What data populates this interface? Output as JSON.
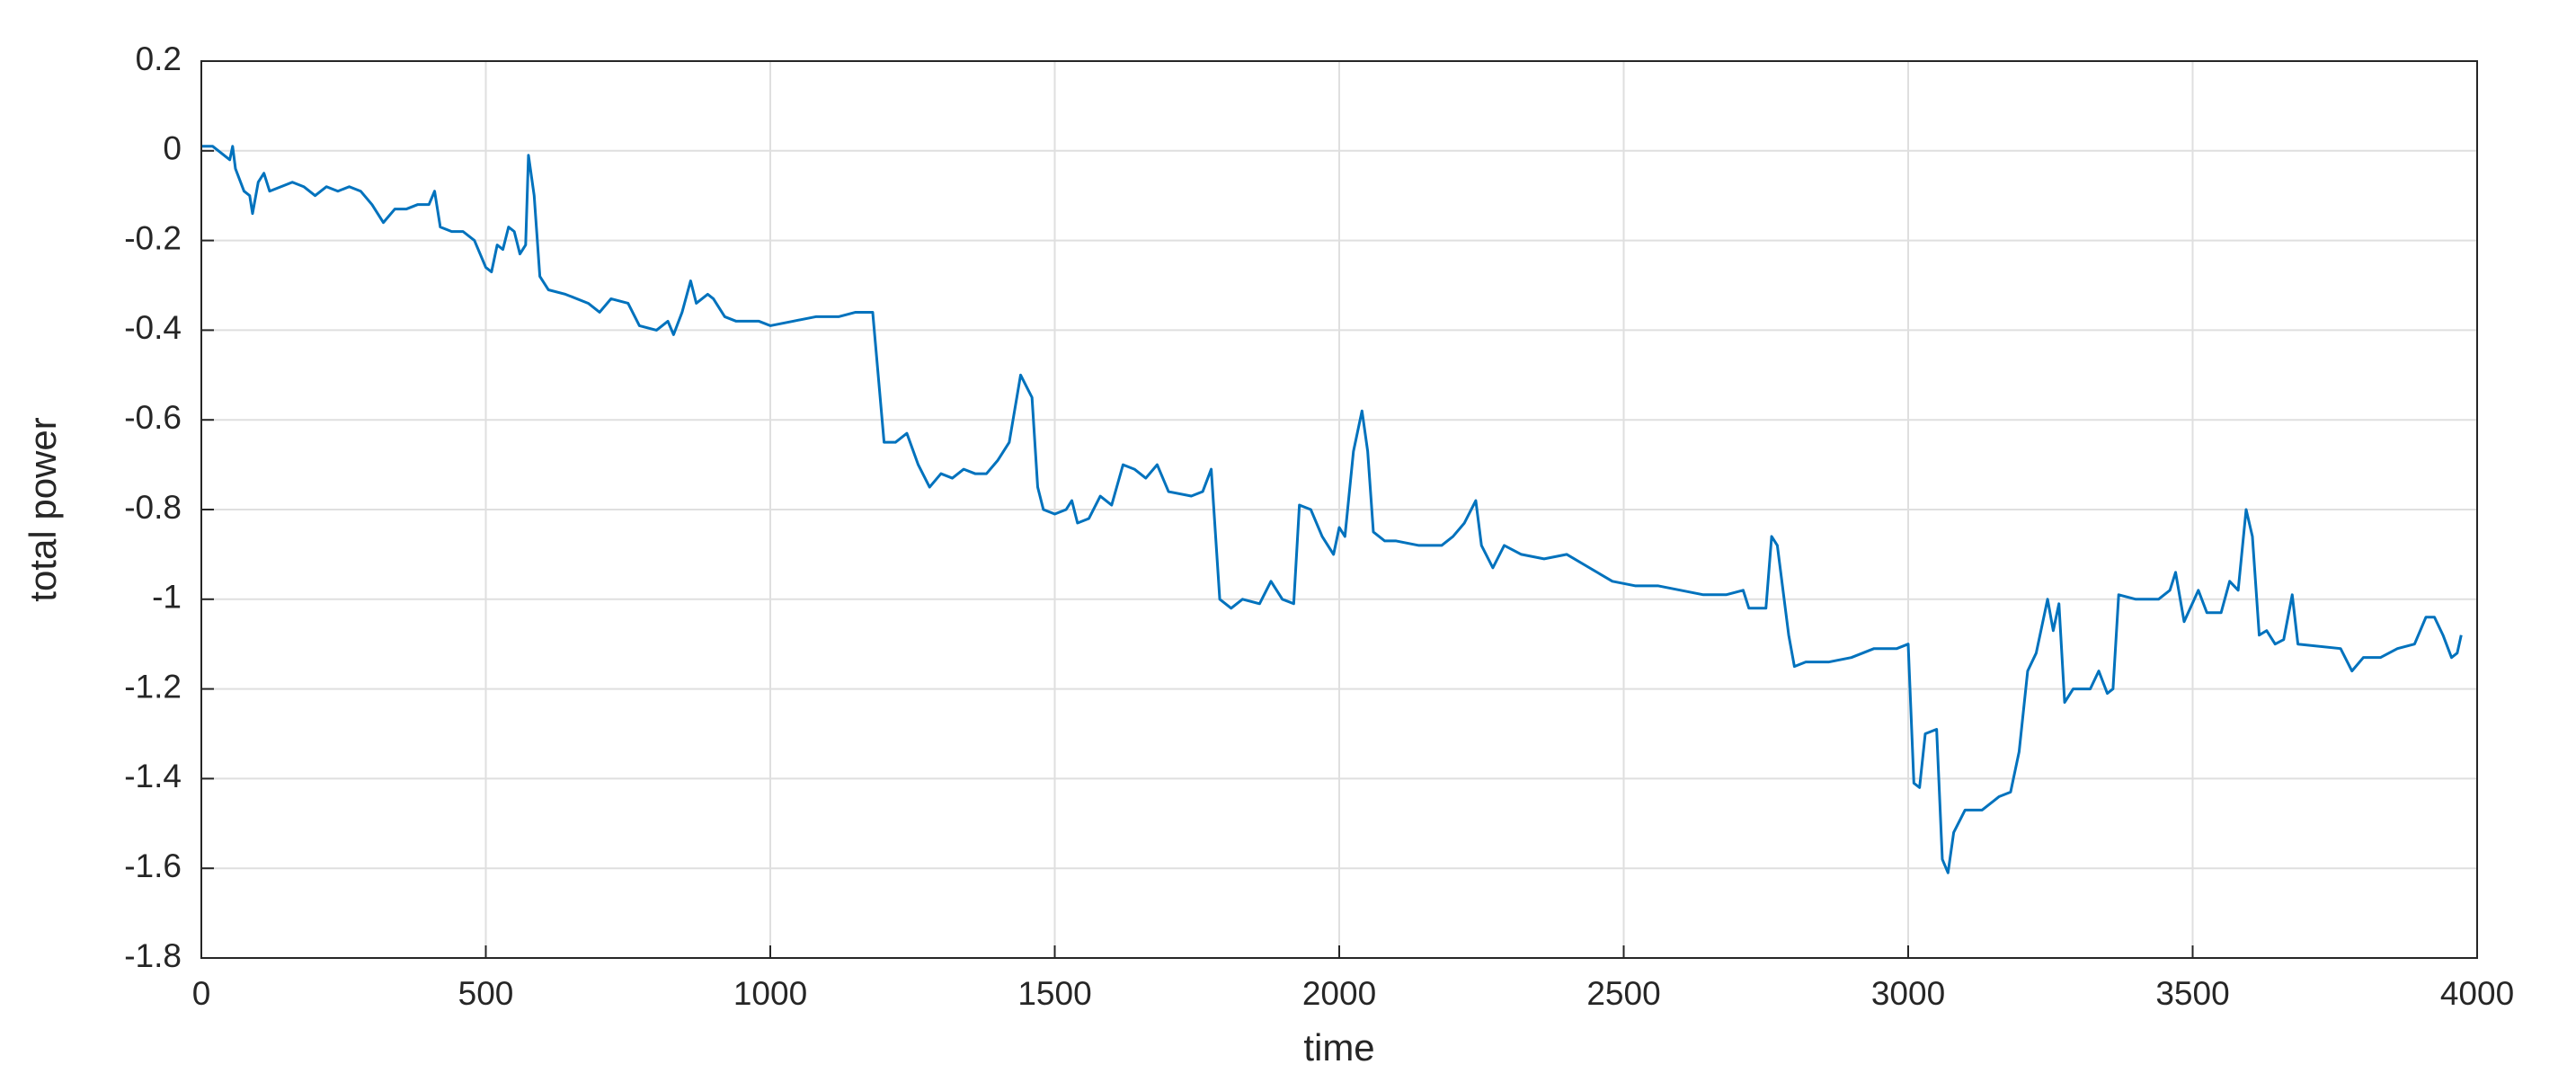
{
  "chart_data": {
    "type": "line",
    "x_label": "time",
    "y_label": "total power",
    "color": "#0072bd",
    "grid": true,
    "xlim": [
      0,
      4000
    ],
    "ylim": [
      -1.8,
      0.2
    ],
    "xticks": [
      0,
      500,
      1000,
      1500,
      2000,
      2500,
      3000,
      3500,
      4000
    ],
    "yticks": [
      -1.8,
      -1.6,
      -1.4,
      -1.2,
      -1,
      -0.8,
      -0.6,
      -0.4,
      -0.2,
      0,
      0.2
    ],
    "x": [
      0,
      20,
      40,
      50,
      55,
      60,
      75,
      85,
      90,
      100,
      110,
      120,
      140,
      160,
      180,
      200,
      220,
      240,
      260,
      280,
      300,
      320,
      340,
      360,
      380,
      400,
      410,
      420,
      440,
      460,
      480,
      500,
      510,
      520,
      530,
      540,
      550,
      560,
      570,
      575,
      585,
      595,
      610,
      640,
      680,
      700,
      720,
      750,
      770,
      800,
      820,
      830,
      845,
      860,
      870,
      890,
      900,
      920,
      940,
      980,
      1000,
      1040,
      1080,
      1120,
      1150,
      1170,
      1180,
      1200,
      1220,
      1240,
      1260,
      1280,
      1300,
      1320,
      1340,
      1360,
      1380,
      1400,
      1420,
      1440,
      1460,
      1470,
      1480,
      1500,
      1520,
      1530,
      1540,
      1560,
      1580,
      1600,
      1620,
      1640,
      1660,
      1680,
      1700,
      1740,
      1760,
      1775,
      1790,
      1810,
      1830,
      1860,
      1880,
      1900,
      1920,
      1930,
      1950,
      1970,
      1990,
      2000,
      2010,
      2025,
      2040,
      2050,
      2060,
      2080,
      2100,
      2140,
      2180,
      2200,
      2220,
      2240,
      2250,
      2270,
      2290,
      2320,
      2360,
      2400,
      2440,
      2480,
      2520,
      2560,
      2600,
      2640,
      2680,
      2710,
      2720,
      2750,
      2760,
      2770,
      2790,
      2800,
      2820,
      2860,
      2900,
      2940,
      2980,
      3000,
      3010,
      3020,
      3030,
      3050,
      3060,
      3070,
      3080,
      3100,
      3130,
      3160,
      3180,
      3195,
      3210,
      3225,
      3245,
      3255,
      3265,
      3275,
      3290,
      3320,
      3335,
      3350,
      3360,
      3370,
      3400,
      3440,
      3460,
      3470,
      3485,
      3510,
      3525,
      3550,
      3565,
      3580,
      3594,
      3605,
      3617,
      3630,
      3645,
      3660,
      3675,
      3685,
      3760,
      3780,
      3800,
      3830,
      3860,
      3890,
      3910,
      3925,
      3940,
      3955,
      3965,
      3972
    ],
    "values": [
      0.01,
      0.01,
      -0.01,
      -0.02,
      0.01,
      -0.04,
      -0.09,
      -0.1,
      -0.14,
      -0.07,
      -0.05,
      -0.09,
      -0.08,
      -0.07,
      -0.08,
      -0.1,
      -0.08,
      -0.09,
      -0.08,
      -0.09,
      -0.12,
      -0.16,
      -0.13,
      -0.13,
      -0.12,
      -0.12,
      -0.09,
      -0.17,
      -0.18,
      -0.18,
      -0.2,
      -0.26,
      -0.27,
      -0.21,
      -0.22,
      -0.17,
      -0.18,
      -0.23,
      -0.21,
      -0.01,
      -0.1,
      -0.28,
      -0.31,
      -0.32,
      -0.34,
      -0.36,
      -0.33,
      -0.34,
      -0.39,
      -0.4,
      -0.38,
      -0.41,
      -0.36,
      -0.29,
      -0.34,
      -0.32,
      -0.33,
      -0.37,
      -0.38,
      -0.38,
      -0.39,
      -0.38,
      -0.37,
      -0.37,
      -0.36,
      -0.36,
      -0.36,
      -0.65,
      -0.65,
      -0.63,
      -0.7,
      -0.75,
      -0.72,
      -0.73,
      -0.71,
      -0.72,
      -0.72,
      -0.69,
      -0.65,
      -0.5,
      -0.55,
      -0.75,
      -0.8,
      -0.81,
      -0.8,
      -0.78,
      -0.83,
      -0.82,
      -0.77,
      -0.79,
      -0.7,
      -0.71,
      -0.73,
      -0.7,
      -0.76,
      -0.77,
      -0.76,
      -0.71,
      -1.0,
      -1.02,
      -1.0,
      -1.01,
      -0.96,
      -1.0,
      -1.01,
      -0.79,
      -0.8,
      -0.86,
      -0.9,
      -0.84,
      -0.86,
      -0.67,
      -0.58,
      -0.67,
      -0.85,
      -0.87,
      -0.87,
      -0.88,
      -0.88,
      -0.86,
      -0.83,
      -0.78,
      -0.88,
      -0.93,
      -0.88,
      -0.9,
      -0.91,
      -0.9,
      -0.93,
      -0.96,
      -0.97,
      -0.97,
      -0.98,
      -0.99,
      -0.99,
      -0.98,
      -1.02,
      -1.02,
      -0.86,
      -0.88,
      -1.08,
      -1.15,
      -1.14,
      -1.14,
      -1.13,
      -1.11,
      -1.11,
      -1.1,
      -1.41,
      -1.42,
      -1.3,
      -1.29,
      -1.58,
      -1.61,
      -1.52,
      -1.47,
      -1.47,
      -1.44,
      -1.43,
      -1.34,
      -1.16,
      -1.12,
      -1.0,
      -1.07,
      -1.01,
      -1.23,
      -1.2,
      -1.2,
      -1.16,
      -1.21,
      -1.2,
      -0.99,
      -1.0,
      -1.0,
      -0.98,
      -0.94,
      -1.05,
      -0.98,
      -1.03,
      -1.03,
      -0.96,
      -0.98,
      -0.8,
      -0.86,
      -1.08,
      -1.07,
      -1.1,
      -1.09,
      -0.99,
      -1.1,
      -1.11,
      -1.16,
      -1.13,
      -1.13,
      -1.11,
      -1.1,
      -1.04,
      -1.04,
      -1.08,
      -1.13,
      -1.12,
      -1.08
    ]
  }
}
